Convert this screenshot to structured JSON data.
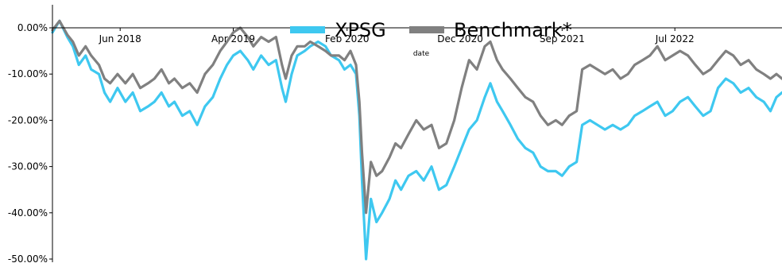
{
  "chart_data": {
    "type": "line",
    "title": "",
    "xlabel": "date",
    "ylabel": "",
    "x_start": "2017-12-01",
    "x_end": "2023-04-15",
    "x_ticks": [
      {
        "date": "2018-06-01",
        "label": "Jun 2018"
      },
      {
        "date": "2019-04-01",
        "label": "Apr 2019"
      },
      {
        "date": "2020-02-01",
        "label": "Feb 2020"
      },
      {
        "date": "2020-12-01",
        "label": "Dec 2020"
      },
      {
        "date": "2021-09-01",
        "label": "Sep 2021"
      },
      {
        "date": "2022-07-01",
        "label": "Jul 2022"
      }
    ],
    "y_ticks": [
      {
        "value": 0,
        "label": "0.00%"
      },
      {
        "value": -10,
        "label": "-10.00%"
      },
      {
        "value": -20,
        "label": "-20.00%"
      },
      {
        "value": -30,
        "label": "-30.00%"
      },
      {
        "value": -40,
        "label": "-40.00%"
      },
      {
        "value": -50,
        "label": "-50.00%"
      }
    ],
    "ylim": [
      -50.5,
      5
    ],
    "grid": false,
    "legend_position": "top-center",
    "series": [
      {
        "name": "XPSG",
        "color": "#3ec8f0",
        "points": [
          [
            "2017-12-01",
            -1
          ],
          [
            "2017-12-20",
            1.5
          ],
          [
            "2018-01-10",
            -2
          ],
          [
            "2018-01-25",
            -4
          ],
          [
            "2018-02-10",
            -8
          ],
          [
            "2018-02-28",
            -6
          ],
          [
            "2018-03-15",
            -9
          ],
          [
            "2018-04-05",
            -10
          ],
          [
            "2018-04-20",
            -14
          ],
          [
            "2018-05-05",
            -16
          ],
          [
            "2018-05-25",
            -13
          ],
          [
            "2018-06-15",
            -16
          ],
          [
            "2018-07-05",
            -14
          ],
          [
            "2018-07-25",
            -18
          ],
          [
            "2018-08-15",
            -17
          ],
          [
            "2018-09-01",
            -16
          ],
          [
            "2018-09-20",
            -14
          ],
          [
            "2018-10-10",
            -17
          ],
          [
            "2018-10-25",
            -16
          ],
          [
            "2018-11-15",
            -19
          ],
          [
            "2018-12-05",
            -18
          ],
          [
            "2018-12-25",
            -21
          ],
          [
            "2019-01-15",
            -17
          ],
          [
            "2019-02-05",
            -15
          ],
          [
            "2019-02-25",
            -11
          ],
          [
            "2019-03-15",
            -8
          ],
          [
            "2019-04-01",
            -6
          ],
          [
            "2019-04-20",
            -5
          ],
          [
            "2019-05-10",
            -7
          ],
          [
            "2019-05-25",
            -9
          ],
          [
            "2019-06-15",
            -6
          ],
          [
            "2019-07-05",
            -8
          ],
          [
            "2019-07-25",
            -7
          ],
          [
            "2019-08-10",
            -13
          ],
          [
            "2019-08-20",
            -16
          ],
          [
            "2019-09-05",
            -10
          ],
          [
            "2019-09-20",
            -6
          ],
          [
            "2019-10-10",
            -5
          ],
          [
            "2019-10-25",
            -4
          ],
          [
            "2019-11-15",
            -3
          ],
          [
            "2019-12-05",
            -4
          ],
          [
            "2019-12-20",
            -6
          ],
          [
            "2020-01-10",
            -7
          ],
          [
            "2020-01-25",
            -9
          ],
          [
            "2020-02-10",
            -8
          ],
          [
            "2020-02-25",
            -10
          ],
          [
            "2020-03-05",
            -19
          ],
          [
            "2020-03-12",
            -33
          ],
          [
            "2020-03-23",
            -50
          ],
          [
            "2020-04-05",
            -37
          ],
          [
            "2020-04-20",
            -42
          ],
          [
            "2020-05-05",
            -40
          ],
          [
            "2020-05-25",
            -37
          ],
          [
            "2020-06-10",
            -33
          ],
          [
            "2020-06-25",
            -35
          ],
          [
            "2020-07-15",
            -32
          ],
          [
            "2020-08-05",
            -31
          ],
          [
            "2020-08-25",
            -33
          ],
          [
            "2020-09-15",
            -30
          ],
          [
            "2020-10-05",
            -35
          ],
          [
            "2020-10-25",
            -34
          ],
          [
            "2020-11-15",
            -30
          ],
          [
            "2020-12-05",
            -26
          ],
          [
            "2020-12-25",
            -22
          ],
          [
            "2021-01-15",
            -20
          ],
          [
            "2021-02-05",
            -15
          ],
          [
            "2021-02-20",
            -12
          ],
          [
            "2021-03-10",
            -16
          ],
          [
            "2021-03-25",
            -18
          ],
          [
            "2021-04-15",
            -21
          ],
          [
            "2021-05-05",
            -24
          ],
          [
            "2021-05-25",
            -26
          ],
          [
            "2021-06-15",
            -27
          ],
          [
            "2021-07-05",
            -30
          ],
          [
            "2021-07-25",
            -31
          ],
          [
            "2021-08-15",
            -31
          ],
          [
            "2021-09-01",
            -32
          ],
          [
            "2021-09-20",
            -30
          ],
          [
            "2021-10-10",
            -29
          ],
          [
            "2021-10-25",
            -21
          ],
          [
            "2021-11-15",
            -20
          ],
          [
            "2021-12-05",
            -21
          ],
          [
            "2021-12-25",
            -22
          ],
          [
            "2022-01-15",
            -21
          ],
          [
            "2022-02-05",
            -22
          ],
          [
            "2022-02-25",
            -21
          ],
          [
            "2022-03-15",
            -19
          ],
          [
            "2022-04-05",
            -18
          ],
          [
            "2022-04-25",
            -17
          ],
          [
            "2022-05-15",
            -16
          ],
          [
            "2022-06-05",
            -19
          ],
          [
            "2022-06-25",
            -18
          ],
          [
            "2022-07-15",
            -16
          ],
          [
            "2022-08-05",
            -15
          ],
          [
            "2022-08-25",
            -17
          ],
          [
            "2022-09-15",
            -19
          ],
          [
            "2022-10-05",
            -18
          ],
          [
            "2022-10-25",
            -13
          ],
          [
            "2022-11-15",
            -11
          ],
          [
            "2022-12-05",
            -12
          ],
          [
            "2022-12-25",
            -14
          ],
          [
            "2023-01-15",
            -13
          ],
          [
            "2023-02-05",
            -15
          ],
          [
            "2023-02-25",
            -16
          ],
          [
            "2023-03-15",
            -18
          ],
          [
            "2023-03-31",
            -15
          ],
          [
            "2023-04-15",
            -14
          ]
        ]
      },
      {
        "name": "Benchmark*",
        "color": "#808080",
        "points": [
          [
            "2017-12-01",
            -0.5
          ],
          [
            "2017-12-20",
            1.5
          ],
          [
            "2018-01-10",
            -1.5
          ],
          [
            "2018-01-25",
            -3
          ],
          [
            "2018-02-10",
            -6
          ],
          [
            "2018-02-28",
            -4
          ],
          [
            "2018-03-15",
            -6
          ],
          [
            "2018-04-05",
            -8
          ],
          [
            "2018-04-20",
            -11
          ],
          [
            "2018-05-05",
            -12
          ],
          [
            "2018-05-25",
            -10
          ],
          [
            "2018-06-15",
            -12
          ],
          [
            "2018-07-05",
            -10
          ],
          [
            "2018-07-25",
            -13
          ],
          [
            "2018-08-15",
            -12
          ],
          [
            "2018-09-01",
            -11
          ],
          [
            "2018-09-20",
            -9
          ],
          [
            "2018-10-10",
            -12
          ],
          [
            "2018-10-25",
            -11
          ],
          [
            "2018-11-15",
            -13
          ],
          [
            "2018-12-05",
            -12
          ],
          [
            "2018-12-25",
            -14
          ],
          [
            "2019-01-15",
            -10
          ],
          [
            "2019-02-05",
            -8
          ],
          [
            "2019-02-25",
            -5
          ],
          [
            "2019-03-15",
            -3
          ],
          [
            "2019-04-01",
            -1
          ],
          [
            "2019-04-20",
            0
          ],
          [
            "2019-05-10",
            -2
          ],
          [
            "2019-05-25",
            -4
          ],
          [
            "2019-06-15",
            -2
          ],
          [
            "2019-07-05",
            -3
          ],
          [
            "2019-07-25",
            -2
          ],
          [
            "2019-08-10",
            -8
          ],
          [
            "2019-08-20",
            -11
          ],
          [
            "2019-09-05",
            -6
          ],
          [
            "2019-09-20",
            -4
          ],
          [
            "2019-10-10",
            -4
          ],
          [
            "2019-10-25",
            -3
          ],
          [
            "2019-11-15",
            -4
          ],
          [
            "2019-12-05",
            -5
          ],
          [
            "2019-12-20",
            -6
          ],
          [
            "2020-01-10",
            -6
          ],
          [
            "2020-01-25",
            -7
          ],
          [
            "2020-02-10",
            -5
          ],
          [
            "2020-02-25",
            -8
          ],
          [
            "2020-03-05",
            -16
          ],
          [
            "2020-03-12",
            -27
          ],
          [
            "2020-03-23",
            -40
          ],
          [
            "2020-04-05",
            -29
          ],
          [
            "2020-04-20",
            -32
          ],
          [
            "2020-05-05",
            -31
          ],
          [
            "2020-05-25",
            -28
          ],
          [
            "2020-06-10",
            -25
          ],
          [
            "2020-06-25",
            -26
          ],
          [
            "2020-07-15",
            -23
          ],
          [
            "2020-08-05",
            -20
          ],
          [
            "2020-08-25",
            -22
          ],
          [
            "2020-09-15",
            -21
          ],
          [
            "2020-10-05",
            -26
          ],
          [
            "2020-10-25",
            -25
          ],
          [
            "2020-11-15",
            -20
          ],
          [
            "2020-12-05",
            -13
          ],
          [
            "2020-12-25",
            -7
          ],
          [
            "2021-01-15",
            -9
          ],
          [
            "2021-02-05",
            -4
          ],
          [
            "2021-02-20",
            -3
          ],
          [
            "2021-03-10",
            -7
          ],
          [
            "2021-03-25",
            -9
          ],
          [
            "2021-04-15",
            -11
          ],
          [
            "2021-05-05",
            -13
          ],
          [
            "2021-05-25",
            -15
          ],
          [
            "2021-06-15",
            -16
          ],
          [
            "2021-07-05",
            -19
          ],
          [
            "2021-07-25",
            -21
          ],
          [
            "2021-08-15",
            -20
          ],
          [
            "2021-09-01",
            -21
          ],
          [
            "2021-09-20",
            -19
          ],
          [
            "2021-10-10",
            -18
          ],
          [
            "2021-10-25",
            -9
          ],
          [
            "2021-11-15",
            -8
          ],
          [
            "2021-12-05",
            -9
          ],
          [
            "2021-12-25",
            -10
          ],
          [
            "2022-01-15",
            -9
          ],
          [
            "2022-02-05",
            -11
          ],
          [
            "2022-02-25",
            -10
          ],
          [
            "2022-03-15",
            -8
          ],
          [
            "2022-04-05",
            -7
          ],
          [
            "2022-04-25",
            -6
          ],
          [
            "2022-05-15",
            -4
          ],
          [
            "2022-06-05",
            -7
          ],
          [
            "2022-06-25",
            -6
          ],
          [
            "2022-07-15",
            -5
          ],
          [
            "2022-08-05",
            -6
          ],
          [
            "2022-08-25",
            -8
          ],
          [
            "2022-09-15",
            -10
          ],
          [
            "2022-10-05",
            -9
          ],
          [
            "2022-10-25",
            -7
          ],
          [
            "2022-11-15",
            -5
          ],
          [
            "2022-12-05",
            -6
          ],
          [
            "2022-12-25",
            -8
          ],
          [
            "2023-01-15",
            -7
          ],
          [
            "2023-02-05",
            -9
          ],
          [
            "2023-02-25",
            -10
          ],
          [
            "2023-03-15",
            -11
          ],
          [
            "2023-03-31",
            -10
          ],
          [
            "2023-04-15",
            -11
          ]
        ]
      }
    ]
  }
}
